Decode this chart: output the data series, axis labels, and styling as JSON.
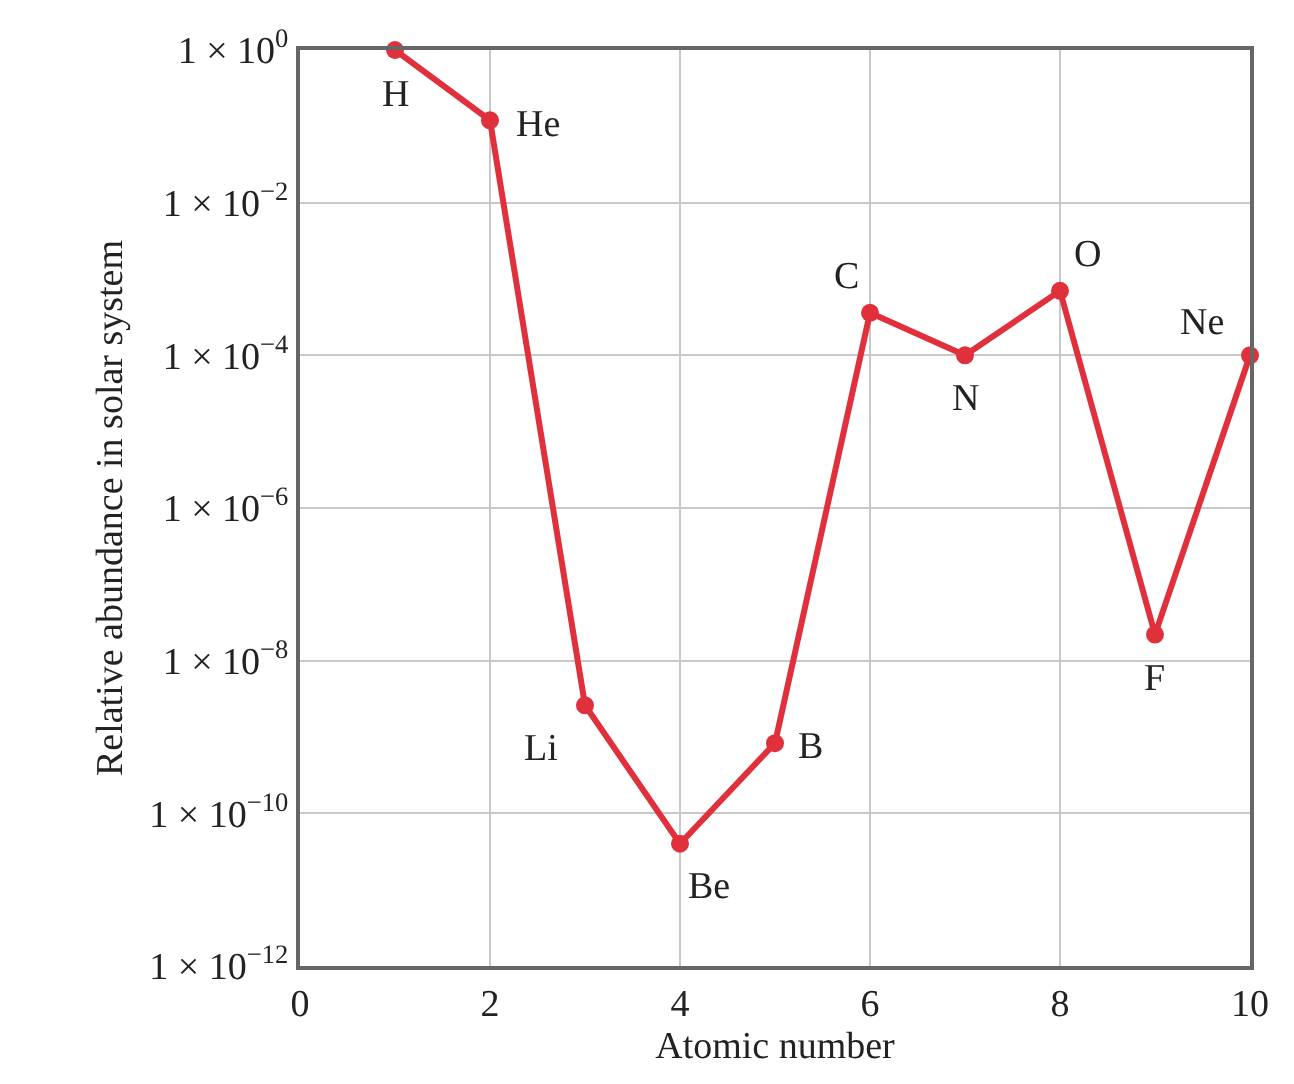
{
  "chart_data": {
    "type": "line",
    "xlabel": "Atomic number",
    "ylabel": "Relative abundance in solar system",
    "x": [
      1,
      2,
      3,
      4,
      5,
      6,
      7,
      8,
      9,
      10
    ],
    "series": [
      {
        "color": "#e0303c",
        "values": [
          1,
          0.12,
          2.6e-09,
          4e-11,
          8.3e-10,
          0.00036,
          0.0001,
          0.0007,
          2.2e-08,
          0.0001
        ]
      }
    ],
    "xlim": [
      0,
      10
    ],
    "xticks": [
      0,
      2,
      4,
      6,
      8,
      10
    ],
    "ylim": [
      1e-12,
      1
    ],
    "yticks": [
      {
        "value": 1,
        "label": "1 × 10$^{0}$"
      },
      {
        "value": 0.01,
        "label": "1 × 10$^{−2}$"
      },
      {
        "value": 0.0001,
        "label": "1 × 10$^{−4}$"
      },
      {
        "value": 1e-06,
        "label": "1 × 10$^{−6}$"
      },
      {
        "value": 1e-08,
        "label": "1 × 10$^{−8}$"
      },
      {
        "value": 1e-10,
        "label": "1 × 10$^{−10}$"
      },
      {
        "value": 1e-12,
        "label": "1 × 10$^{−12}$"
      }
    ],
    "log": "y",
    "grid": true,
    "marker": "circle",
    "line_style": "solid",
    "legend": false,
    "annotations": [
      {
        "text": "H",
        "x": 1,
        "y": 1
      },
      {
        "text": "He",
        "x": 2,
        "y": 0.12
      },
      {
        "text": "Li",
        "x": 3,
        "y": 2.6e-09
      },
      {
        "text": "Be",
        "x": 4,
        "y": 4e-11
      },
      {
        "text": "B",
        "x": 5,
        "y": 8.3e-10
      },
      {
        "text": "C",
        "x": 6,
        "y": 0.00036
      },
      {
        "text": "N",
        "x": 7,
        "y": 0.0001
      },
      {
        "text": "O",
        "x": 8,
        "y": 0.0007
      },
      {
        "text": "F",
        "x": 9,
        "y": 2.2e-08
      },
      {
        "text": "Ne",
        "x": 10,
        "y": 0.0001
      }
    ]
  }
}
